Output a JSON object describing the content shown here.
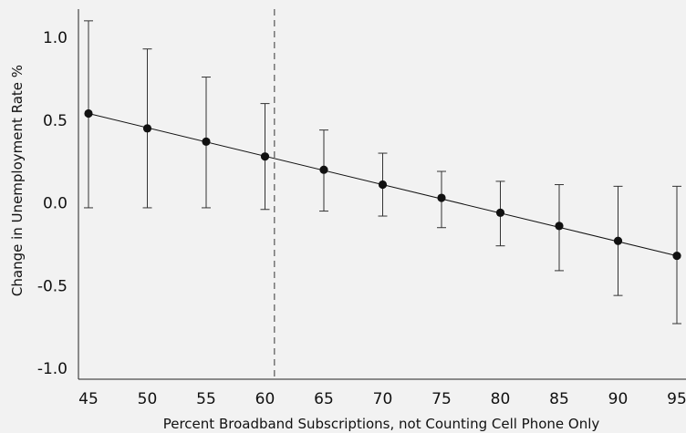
{
  "chart_data": {
    "type": "scatter",
    "title": "",
    "xlabel": "Percent Broadband Subscriptions, not Counting Cell Phone Only",
    "ylabel": "Change in Unemployment Rate %",
    "xlim": [
      45,
      95
    ],
    "ylim": [
      -1.05,
      1.15
    ],
    "xticks": [
      45,
      50,
      55,
      60,
      65,
      70,
      75,
      80,
      85,
      90,
      95
    ],
    "yticks": [
      -1.0,
      -0.5,
      0.0,
      0.5,
      1.0
    ],
    "ytick_labels": [
      "-1.0",
      "-0.5",
      "0.0",
      "0.5",
      "1.0"
    ],
    "reference_line_x": 60.8,
    "fit_line": {
      "x": [
        45,
        95
      ],
      "y": [
        0.54,
        -0.32
      ]
    },
    "series": [
      {
        "x": [
          45,
          50,
          55,
          60,
          65,
          70,
          75,
          80,
          85,
          90,
          95
        ],
        "y": [
          0.54,
          0.45,
          0.37,
          0.28,
          0.2,
          0.11,
          0.03,
          -0.06,
          -0.14,
          -0.23,
          -0.32
        ],
        "lower": [
          -0.03,
          -0.03,
          -0.03,
          -0.04,
          -0.05,
          -0.08,
          -0.15,
          -0.26,
          -0.41,
          -0.56,
          -0.73
        ],
        "upper": [
          1.1,
          0.93,
          0.76,
          0.6,
          0.44,
          0.3,
          0.19,
          0.13,
          0.11,
          0.1,
          0.1
        ]
      }
    ],
    "grid": false,
    "colors": {
      "marker": "#111111",
      "line": "#111111",
      "errorbar": "#333333",
      "reference": "#555555",
      "background": "#f2f2f2"
    }
  }
}
